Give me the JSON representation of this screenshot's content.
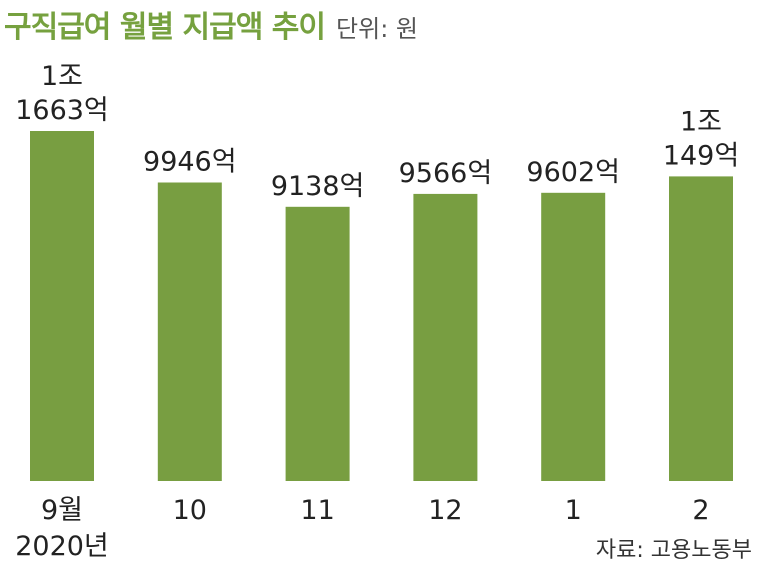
{
  "header": {
    "title": "구직급여 월별 지급액 추이",
    "unit": "단위: 원"
  },
  "source": "자료: 고용노동부",
  "chart_data": {
    "type": "bar",
    "categories": [
      "9월",
      "10",
      "11",
      "12",
      "1",
      "2"
    ],
    "category_sublabels": [
      "2020년",
      "",
      "",
      "",
      "",
      ""
    ],
    "values": [
      11663,
      9946,
      9138,
      9566,
      9602,
      10149
    ],
    "value_labels": [
      [
        "1조",
        "1663억"
      ],
      [
        "9946억"
      ],
      [
        "9138억"
      ],
      [
        "9566억"
      ],
      [
        "9602억"
      ],
      [
        "1조",
        "149억"
      ]
    ],
    "title": "구직급여 월별 지급액 추이",
    "ylim": [
      0,
      11663
    ],
    "grid": false,
    "colors": {
      "bar": "#789e41",
      "title": "#76a13f"
    }
  }
}
